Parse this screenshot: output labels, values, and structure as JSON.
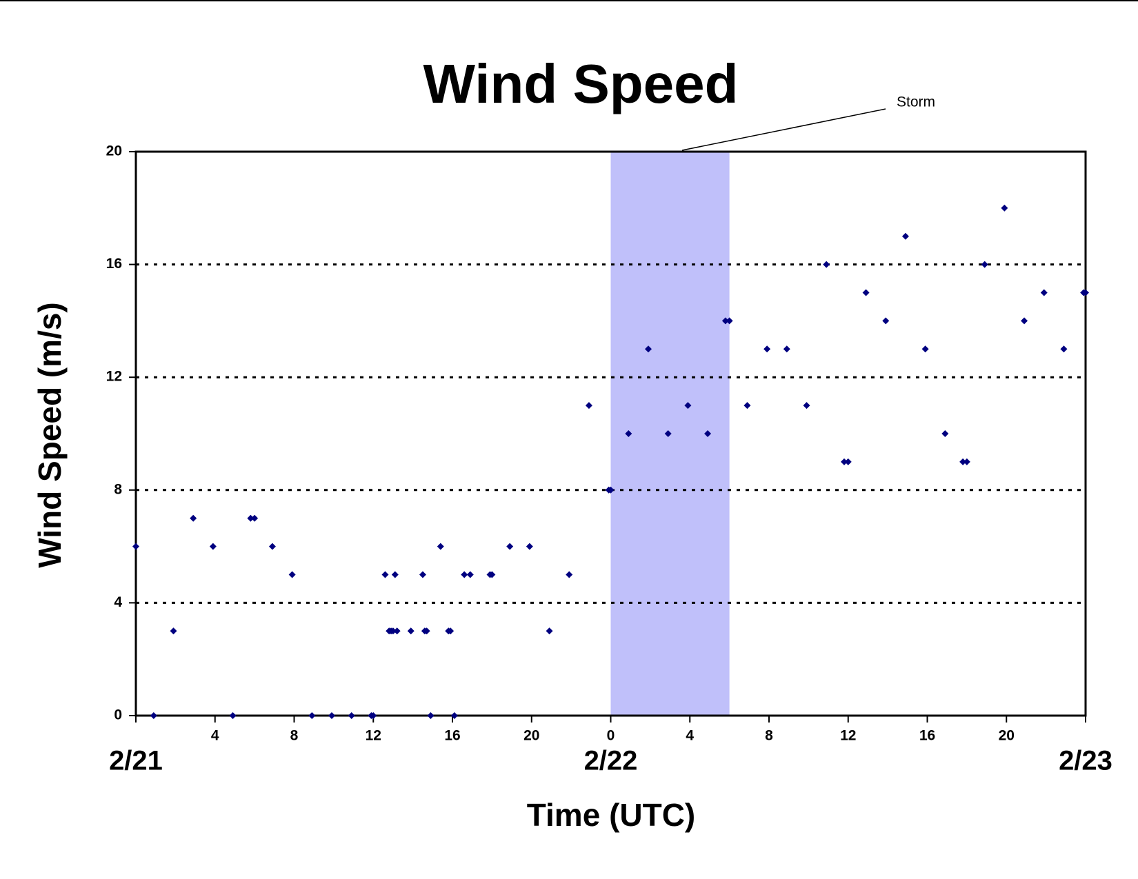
{
  "chart_data": {
    "type": "scatter",
    "title": "Wind Speed",
    "xlabel": "Time (UTC)",
    "ylabel": "Wind Speed (m/s)",
    "series": [
      {
        "color": "#000080",
        "x": [
          0,
          0.9,
          1.9,
          2.9,
          3.9,
          4.9,
          5.8,
          6,
          6.9,
          7.9,
          8.9,
          9.9,
          10.9,
          11.9,
          12,
          12.6,
          12.8,
          12.9,
          13,
          13.1,
          13.2,
          13.9,
          14.5,
          14.6,
          14.7,
          14.9,
          15.4,
          15.8,
          15.9,
          16.1,
          16.6,
          16.9,
          17.9,
          18,
          18.9,
          19.9,
          20.9,
          21.9,
          22.9,
          23.9,
          24,
          24.9,
          25.9,
          26.9,
          27.9,
          28.9,
          29.8,
          30,
          30.9,
          31.9,
          32.9,
          33.9,
          34.9,
          35.8,
          36,
          36.9,
          37.9,
          38.9,
          39.9,
          40.9,
          41.8,
          42,
          42.9,
          43.9,
          44.9,
          45.9,
          46.9,
          47.9,
          48
        ],
        "values": [
          6,
          0,
          3,
          7,
          6,
          0,
          7,
          7,
          6,
          5,
          0,
          0,
          0,
          0,
          0,
          5,
          3,
          3,
          3,
          5,
          3,
          3,
          5,
          3,
          3,
          0,
          6,
          3,
          3,
          0,
          5,
          5,
          5,
          5,
          6,
          6,
          3,
          5,
          11,
          8,
          8,
          10,
          13,
          10,
          11,
          10,
          14,
          14,
          11,
          13,
          13,
          11,
          16,
          9,
          9,
          15,
          14,
          17,
          13,
          10,
          9,
          9,
          16,
          18,
          14,
          15,
          13,
          15,
          15
        ]
      }
    ],
    "xlim": [
      0,
      48
    ],
    "ylim": [
      0,
      20
    ],
    "xticks": [
      4,
      8,
      12,
      16,
      20,
      {
        "value": 24,
        "label": "0"
      },
      {
        "value": 28,
        "label": "4"
      },
      {
        "value": 32,
        "label": "8"
      },
      {
        "value": 36,
        "label": "12"
      },
      {
        "value": 40,
        "label": "16"
      },
      {
        "value": 44,
        "label": "20"
      }
    ],
    "date_ticks": [
      {
        "value": 0,
        "label": "2/21"
      },
      {
        "value": 24,
        "label": "2/22"
      },
      {
        "value": 48,
        "label": "2/23"
      }
    ],
    "yticks": [
      0,
      4,
      8,
      12,
      16,
      20
    ],
    "grid": true,
    "shaded_region": {
      "xlim": [
        24,
        30
      ],
      "color": "#c0c0fa",
      "label": "Storm"
    }
  }
}
